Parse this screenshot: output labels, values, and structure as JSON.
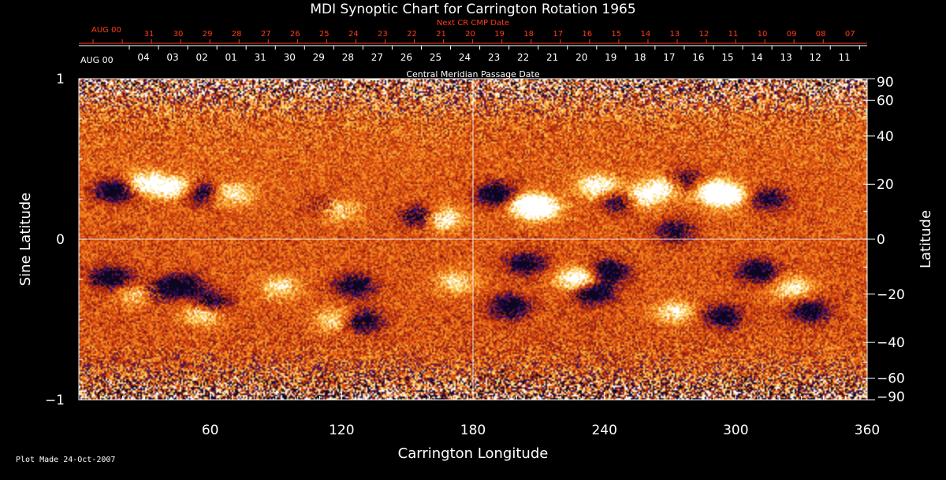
{
  "chart_data": {
    "type": "heatmap",
    "title": "MDI Synoptic Chart for Carrington Rotation 1965",
    "xlabel": "Carrington Longitude",
    "ylabel_left": "Sine Latitude",
    "ylabel_right": "Latitude",
    "xlim": [
      0,
      360
    ],
    "ylim": [
      -1,
      1
    ],
    "x_ticks": [
      60,
      120,
      180,
      240,
      300,
      360
    ],
    "y_ticks_left": [
      {
        "value": 1,
        "label": "1"
      },
      {
        "value": 0,
        "label": "0"
      },
      {
        "value": -1,
        "label": "−1"
      }
    ],
    "y_ticks_right": [
      {
        "deg": 90,
        "label": "90"
      },
      {
        "deg": 60,
        "label": "60"
      },
      {
        "deg": 40,
        "label": "40"
      },
      {
        "deg": 20,
        "label": "20"
      },
      {
        "deg": 0,
        "label": "0"
      },
      {
        "deg": -20,
        "label": "−20"
      },
      {
        "deg": -40,
        "label": "−40"
      },
      {
        "deg": -60,
        "label": "−60"
      },
      {
        "deg": -90,
        "label": "−90"
      }
    ],
    "top_axis_next_cr": {
      "label": "Next CR CMP Date",
      "start_label": "AUG 00",
      "dates": [
        "31",
        "30",
        "29",
        "28",
        "27",
        "26",
        "25",
        "24",
        "23",
        "22",
        "21",
        "20",
        "19",
        "18",
        "17",
        "16",
        "15",
        "14",
        "13",
        "12",
        "11",
        "10",
        "09",
        "08",
        "07"
      ]
    },
    "top_axis_cmp": {
      "label": "Central Meridian Passage Date",
      "start_label": "AUG 00",
      "dates": [
        "04",
        "03",
        "02",
        "01",
        "31",
        "30",
        "29",
        "28",
        "27",
        "26",
        "25",
        "24",
        "23",
        "22",
        "21",
        "20",
        "19",
        "18",
        "17",
        "16",
        "15",
        "14",
        "13",
        "12",
        "11"
      ]
    },
    "colormap": [
      "#0d0621",
      "#3b1166",
      "#8a1a1a",
      "#c0390f",
      "#e35a12",
      "#f28a22",
      "#f7bb46",
      "#fde38f",
      "#ffffff"
    ],
    "active_regions": [
      {
        "lon": 17,
        "sinlat": 0.3,
        "polarity": "negative",
        "strength": 0.9
      },
      {
        "lon": 30,
        "sinlat": 0.35,
        "polarity": "positive",
        "strength": 0.8
      },
      {
        "lon": 44,
        "sinlat": 0.32,
        "polarity": "positive",
        "strength": 0.9
      },
      {
        "lon": 55,
        "sinlat": 0.29,
        "polarity": "negative",
        "strength": 0.7
      },
      {
        "lon": 70,
        "sinlat": 0.28,
        "polarity": "positive",
        "strength": 0.6
      },
      {
        "lon": 117,
        "sinlat": 0.18,
        "polarity": "positive",
        "strength": 0.8
      },
      {
        "lon": 113,
        "sinlat": 0.19,
        "polarity": "negative",
        "strength": 0.6
      },
      {
        "lon": 165,
        "sinlat": 0.13,
        "polarity": "positive",
        "strength": 0.9
      },
      {
        "lon": 157,
        "sinlat": 0.14,
        "polarity": "negative",
        "strength": 0.8
      },
      {
        "lon": 191,
        "sinlat": 0.28,
        "polarity": "negative",
        "strength": 0.9
      },
      {
        "lon": 205,
        "sinlat": 0.22,
        "polarity": "positive",
        "strength": 0.9
      },
      {
        "lon": 211,
        "sinlat": 0.19,
        "polarity": "positive",
        "strength": 0.8
      },
      {
        "lon": 237,
        "sinlat": 0.33,
        "polarity": "positive",
        "strength": 0.8
      },
      {
        "lon": 248,
        "sinlat": 0.24,
        "polarity": "negative",
        "strength": 0.8
      },
      {
        "lon": 256,
        "sinlat": 0.26,
        "polarity": "positive",
        "strength": 0.9
      },
      {
        "lon": 268,
        "sinlat": 0.33,
        "polarity": "positive",
        "strength": 0.8
      },
      {
        "lon": 276,
        "sinlat": 0.36,
        "polarity": "negative",
        "strength": 0.7
      },
      {
        "lon": 290,
        "sinlat": 0.3,
        "polarity": "positive",
        "strength": 0.9
      },
      {
        "lon": 296,
        "sinlat": 0.27,
        "polarity": "positive",
        "strength": 0.8
      },
      {
        "lon": 315,
        "sinlat": 0.25,
        "polarity": "negative",
        "strength": 0.6
      },
      {
        "lon": 272,
        "sinlat": 0.05,
        "polarity": "negative",
        "strength": 0.6
      },
      {
        "lon": 15,
        "sinlat": -0.24,
        "polarity": "negative",
        "strength": 0.8
      },
      {
        "lon": 28,
        "sinlat": -0.34,
        "polarity": "positive",
        "strength": 0.8
      },
      {
        "lon": 33,
        "sinlat": -0.33,
        "polarity": "negative",
        "strength": 0.7
      },
      {
        "lon": 47,
        "sinlat": -0.29,
        "polarity": "negative",
        "strength": 0.8
      },
      {
        "lon": 60,
        "sinlat": -0.4,
        "polarity": "negative",
        "strength": 0.7
      },
      {
        "lon": 57,
        "sinlat": -0.46,
        "polarity": "positive",
        "strength": 0.7
      },
      {
        "lon": 92,
        "sinlat": -0.3,
        "polarity": "positive",
        "strength": 0.5
      },
      {
        "lon": 126,
        "sinlat": -0.29,
        "polarity": "negative",
        "strength": 0.7
      },
      {
        "lon": 129,
        "sinlat": -0.51,
        "polarity": "negative",
        "strength": 0.8
      },
      {
        "lon": 118,
        "sinlat": -0.5,
        "polarity": "positive",
        "strength": 0.6
      },
      {
        "lon": 172,
        "sinlat": -0.27,
        "polarity": "positive",
        "strength": 0.5
      },
      {
        "lon": 197,
        "sinlat": -0.42,
        "polarity": "negative",
        "strength": 0.8
      },
      {
        "lon": 204,
        "sinlat": -0.15,
        "polarity": "negative",
        "strength": 0.7
      },
      {
        "lon": 228,
        "sinlat": -0.25,
        "polarity": "positive",
        "strength": 1.0
      },
      {
        "lon": 235,
        "sinlat": -0.33,
        "polarity": "negative",
        "strength": 0.9
      },
      {
        "lon": 242,
        "sinlat": -0.2,
        "polarity": "negative",
        "strength": 0.8
      },
      {
        "lon": 272,
        "sinlat": -0.45,
        "polarity": "positive",
        "strength": 0.6
      },
      {
        "lon": 294,
        "sinlat": -0.48,
        "polarity": "negative",
        "strength": 0.7
      },
      {
        "lon": 310,
        "sinlat": -0.2,
        "polarity": "negative",
        "strength": 0.8
      },
      {
        "lon": 326,
        "sinlat": -0.3,
        "polarity": "positive",
        "strength": 0.6
      },
      {
        "lon": 334,
        "sinlat": -0.45,
        "polarity": "negative",
        "strength": 0.7
      }
    ]
  },
  "footer": {
    "plot_made": "Plot Made 24-Oct-2007"
  }
}
